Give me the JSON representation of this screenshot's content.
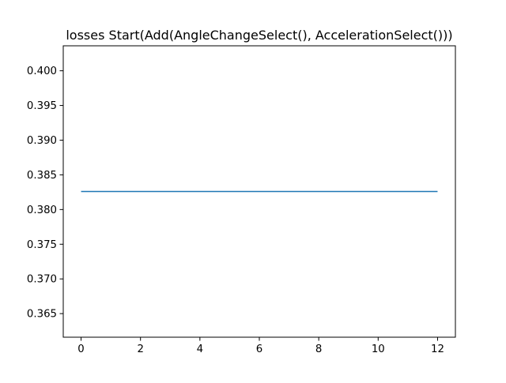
{
  "chart_data": {
    "type": "line",
    "title": "losses Start(Add(AngleChangeSelect(), AccelerationSelect()))",
    "xlabel": "",
    "ylabel": "",
    "xlim": [
      -0.6,
      12.6
    ],
    "ylim": [
      0.3616,
      0.4036
    ],
    "xticks": [
      0,
      2,
      4,
      6,
      8,
      10,
      12
    ],
    "xtick_labels": [
      "0",
      "2",
      "4",
      "6",
      "8",
      "10",
      "12"
    ],
    "yticks": [
      0.365,
      0.37,
      0.375,
      0.38,
      0.385,
      0.39,
      0.395,
      0.4
    ],
    "ytick_labels": [
      "0.365",
      "0.370",
      "0.375",
      "0.380",
      "0.385",
      "0.390",
      "0.395",
      "0.400"
    ],
    "grid": false,
    "series": [
      {
        "color": "#1f77b4",
        "x": [
          0,
          1,
          2,
          3,
          4,
          5,
          6,
          7,
          8,
          9,
          10,
          11,
          12
        ],
        "y": [
          0.3826,
          0.3826,
          0.3826,
          0.3826,
          0.3826,
          0.3826,
          0.3826,
          0.3826,
          0.3826,
          0.3826,
          0.3826,
          0.3826,
          0.3826
        ]
      }
    ]
  }
}
